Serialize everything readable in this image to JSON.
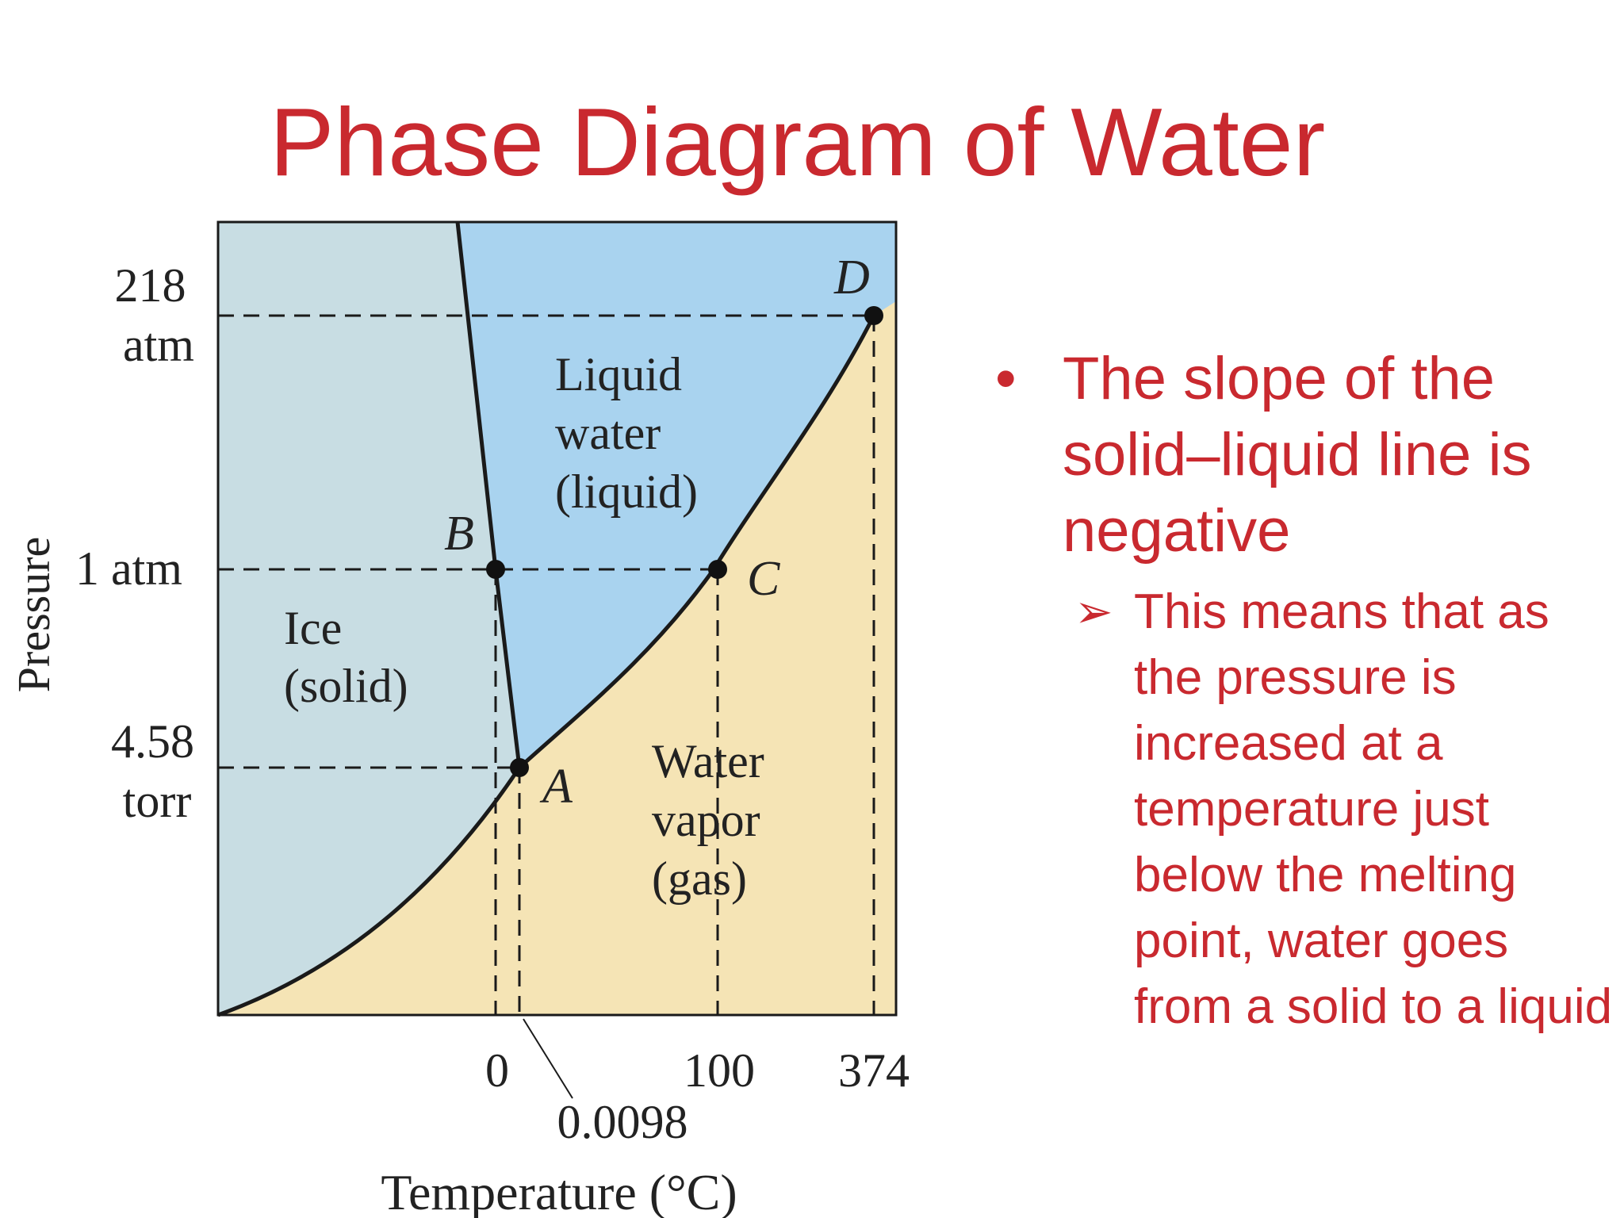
{
  "slide": {
    "title": "Phase Diagram of Water"
  },
  "diagram": {
    "y_axis_label": "Pressure",
    "x_axis_label": "Temperature (°C)",
    "y_ticks": {
      "p218_line1": "218",
      "p218_line2": "atm",
      "p1": "1 atm",
      "p458_line1": "4.58",
      "p458_line2": "torr"
    },
    "x_ticks": {
      "t0": "0",
      "t0098": "0.0098",
      "t100": "100",
      "t374": "374"
    },
    "regions": {
      "solid": [
        "Ice",
        "(solid)"
      ],
      "liquid": [
        "Liquid",
        "water",
        "(liquid)"
      ],
      "gas": [
        "Water",
        "vapor",
        "(gas)"
      ]
    },
    "points": {
      "A": "A",
      "B": "B",
      "C": "C",
      "D": "D"
    },
    "colors": {
      "solid_region": "#c8dde3",
      "liquid_region": "#a9d3ef",
      "gas_region": "#f5e4b5",
      "curve": "#1a1a1a"
    }
  },
  "bullets": {
    "main": "The slope of the solid–liquid line is negative",
    "sub": "This means that as the pressure is increased at a temperature just below the melting point, water goes from a solid to a liquid"
  }
}
